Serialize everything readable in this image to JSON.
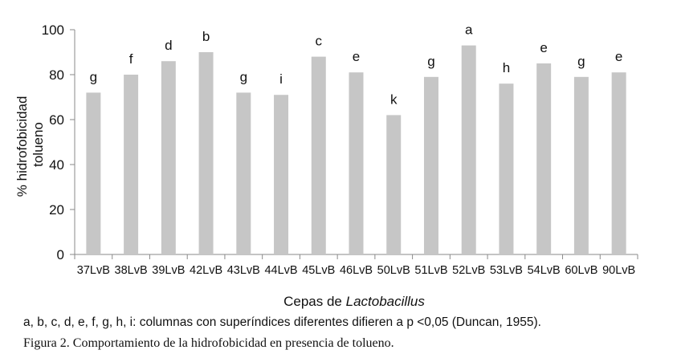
{
  "chart_data": {
    "type": "bar",
    "categories": [
      "37LvB",
      "38LvB",
      "39LvB",
      "42LvB",
      "43LvB",
      "44LvB",
      "45LvB",
      "46LvB",
      "50LvB",
      "51LvB",
      "52LvB",
      "53LvB",
      "54LvB",
      "60LvB",
      "90LvB"
    ],
    "values": [
      72,
      80,
      86,
      90,
      72,
      71,
      88,
      81,
      62,
      79,
      93,
      76,
      85,
      79,
      81
    ],
    "bar_labels": [
      "g",
      "f",
      "d",
      "b",
      "g",
      "i",
      "c",
      "e",
      "k",
      "g",
      "a",
      "h",
      "e",
      "g",
      "e"
    ],
    "ylabel_lines": [
      "% hidrofobicidad",
      "tolueno"
    ],
    "xlabel_prefix": "Cepas de ",
    "xlabel_italic": "Lactobacillus",
    "ylim": [
      0,
      100
    ],
    "yticks": [
      0,
      20,
      40,
      60,
      80,
      100
    ],
    "grid": false,
    "bar_color": "#c6c6c6"
  },
  "captions": {
    "note": "a, b, c, d, e, f, g, h, i: columnas con superíndices diferentes difieren a p <0,05  (Duncan, 1955).",
    "figure": "Figura 2. Comportamiento de la hidrofobicidad en presencia de tolueno."
  }
}
